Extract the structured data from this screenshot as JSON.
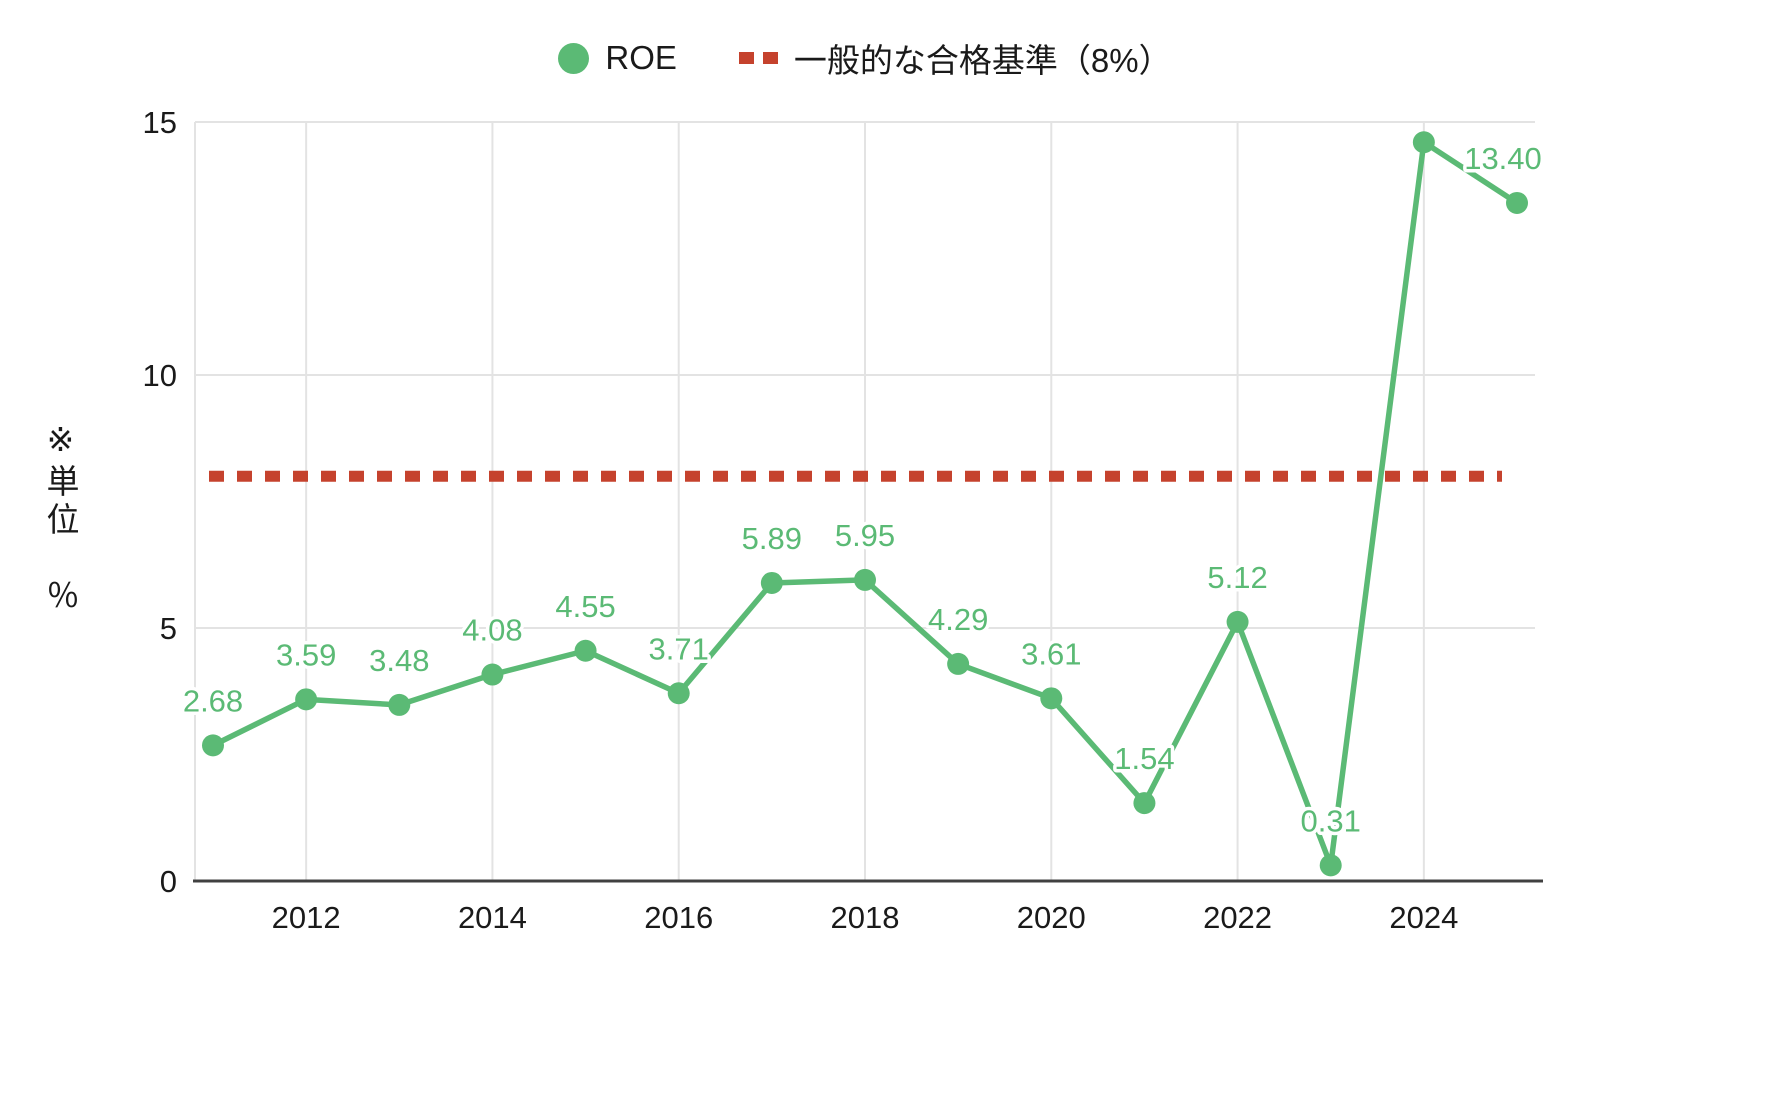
{
  "chart_data": {
    "type": "line",
    "title": "",
    "x": [
      2011,
      2012,
      2013,
      2014,
      2015,
      2016,
      2017,
      2018,
      2019,
      2020,
      2021,
      2022,
      2023,
      2024,
      2025
    ],
    "series": [
      {
        "name": "ROE",
        "color": "#5BBA75",
        "values": [
          2.68,
          3.59,
          3.48,
          4.08,
          4.55,
          3.71,
          5.89,
          5.95,
          4.29,
          3.61,
          1.54,
          5.12,
          0.31,
          14.6,
          13.4
        ],
        "point_labels": [
          "2.68",
          "3.59",
          "3.48",
          "4.08",
          "4.55",
          "3.71",
          "5.89",
          "5.95",
          "4.29",
          "3.61",
          "1.54",
          "5.12",
          "0.31",
          "",
          "13.40"
        ]
      }
    ],
    "threshold": {
      "name": "一般的な合格基準（8%）",
      "value": 8,
      "color": "#C5422D"
    },
    "xticks": [
      2012,
      2014,
      2016,
      2018,
      2020,
      2022,
      2024
    ],
    "yticks": [
      0,
      5,
      10,
      15
    ],
    "ylim": [
      0,
      15
    ],
    "ylabel": "※単位　％",
    "grid": true,
    "legend_position": "top"
  },
  "colors": {
    "series_green": "#5BBA75",
    "threshold_red": "#C5422D",
    "grid": "#e3e3e3",
    "axis": "#404040",
    "tick_text": "#1a1a1a"
  }
}
